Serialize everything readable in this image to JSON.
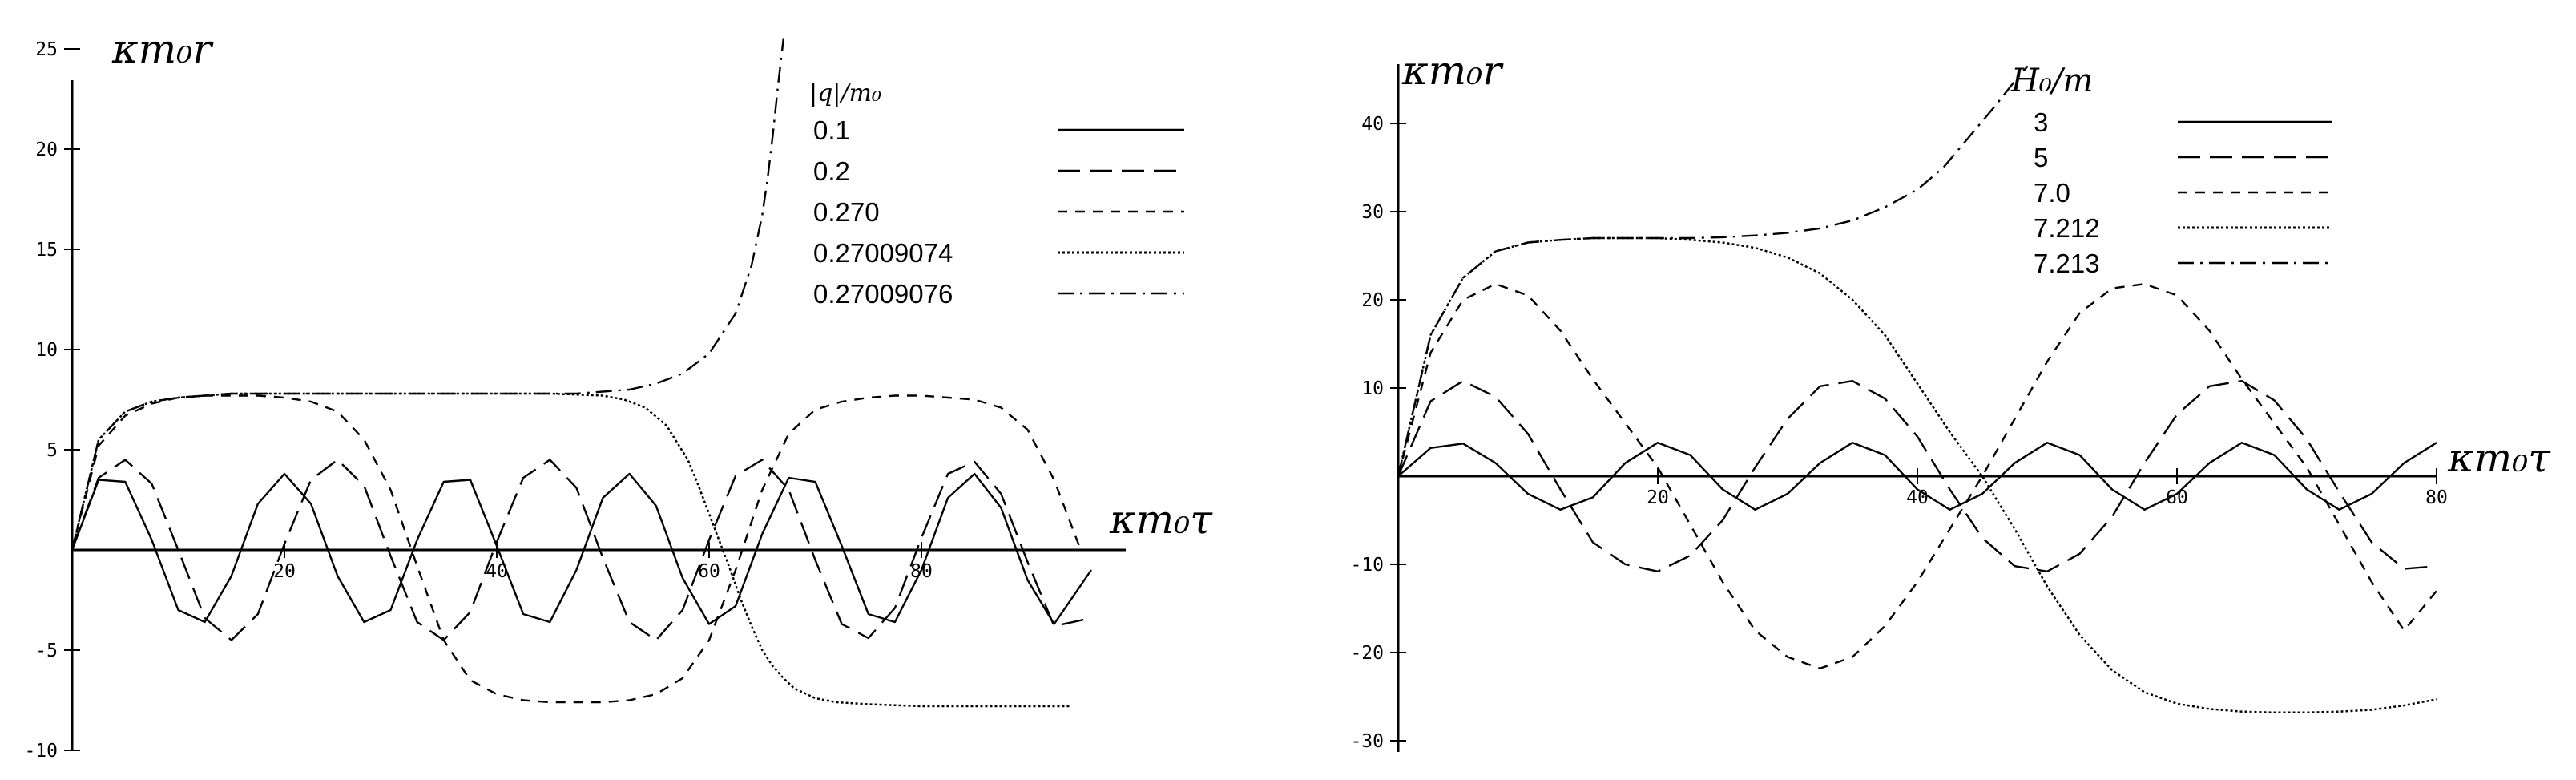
{
  "chart_data": [
    {
      "type": "line",
      "xlabel": "κm₀τ",
      "ylabel": "κm₀r",
      "xlim": [
        0,
        100
      ],
      "ylim": [
        -10,
        25
      ],
      "x_ticks": [
        20,
        40,
        60,
        80
      ],
      "y_ticks": [
        -10,
        -5,
        5,
        10,
        15,
        20,
        25
      ],
      "legend_title": "|q|/m₀",
      "legend_position": "top-right",
      "grid": false,
      "series": [
        {
          "name": "0.1",
          "dash": "solid",
          "x": [
            0,
            2.5,
            5,
            7.5,
            10,
            12.5,
            15,
            17.5,
            20,
            22.5,
            25,
            27.5,
            30,
            32.5,
            35,
            37.5,
            40,
            42.5,
            45,
            47.5,
            50,
            52.5,
            55,
            57.5,
            60,
            62.5,
            65,
            67.5,
            70,
            72.5,
            75,
            77.5,
            80,
            82.5,
            85,
            87.5,
            90,
            92.5,
            96
          ],
          "y": [
            0,
            3.5,
            3.4,
            0.5,
            -3.0,
            -3.6,
            -1.3,
            2.3,
            3.8,
            2.3,
            -1.3,
            -3.6,
            -3.0,
            0.5,
            3.4,
            3.5,
            0.2,
            -3.2,
            -3.6,
            -1,
            2.6,
            3.8,
            2.2,
            -1.4,
            -3.7,
            -2.8,
            0.8,
            3.6,
            3.4,
            0.2,
            -3.2,
            -3.6,
            -1,
            2.6,
            3.8,
            2.1,
            -1.5,
            -3.7,
            -1
          ]
        },
        {
          "name": "0.2",
          "dash": "dashed",
          "x": [
            0,
            2.5,
            5,
            7.5,
            10,
            12.5,
            15,
            17.5,
            20,
            22.5,
            25,
            27.5,
            30,
            32.5,
            35,
            37.5,
            40,
            42.5,
            45,
            47.5,
            50,
            52.5,
            55,
            57.5,
            60,
            62.5,
            65,
            67.5,
            70,
            72.5,
            75,
            77.5,
            80,
            82.5,
            85,
            87.5,
            90,
            92.5,
            96
          ],
          "y": [
            0,
            3.6,
            4.5,
            3.3,
            0,
            -3.4,
            -4.5,
            -3.2,
            0.3,
            3.5,
            4.5,
            3.2,
            -0.3,
            -3.6,
            -4.5,
            -3.1,
            0.4,
            3.6,
            4.5,
            3.1,
            -0.4,
            -3.6,
            -4.5,
            -3,
            0.5,
            3.7,
            4.5,
            3,
            -0.5,
            -3.7,
            -4.4,
            -2.9,
            0.6,
            3.8,
            4.4,
            2.8,
            -0.6,
            -3.8,
            -3.4
          ]
        },
        {
          "name": "0.270",
          "dash": "short-dashed",
          "x": [
            0,
            2.5,
            5,
            7.5,
            10,
            12.5,
            15,
            17.5,
            20,
            22.5,
            25,
            27.5,
            30,
            32.5,
            35,
            37.5,
            40,
            42.5,
            45,
            47.5,
            50,
            52.5,
            55,
            57.5,
            60,
            62.5,
            65,
            67.5,
            70,
            72.5,
            75,
            77.5,
            80,
            82.5,
            85,
            87.5,
            90,
            92.5,
            95
          ],
          "y": [
            0,
            5.2,
            6.7,
            7.3,
            7.6,
            7.7,
            7.7,
            7.7,
            7.6,
            7.4,
            6.9,
            5.5,
            3,
            -0.8,
            -4.5,
            -6.5,
            -7.2,
            -7.5,
            -7.6,
            -7.6,
            -7.6,
            -7.5,
            -7.2,
            -6.4,
            -4.5,
            -1,
            3,
            5.8,
            7,
            7.4,
            7.6,
            7.7,
            7.7,
            7.6,
            7.5,
            7.1,
            6,
            3.5,
            0
          ]
        },
        {
          "name": "0.27009074",
          "dash": "dotted",
          "x": [
            0,
            2.5,
            5,
            7.5,
            10,
            12.5,
            15,
            20,
            25,
            30,
            35,
            40,
            45,
            50,
            52,
            54,
            56,
            58,
            59,
            60,
            61,
            62,
            63,
            64,
            65,
            66,
            67,
            68,
            70,
            72,
            75,
            80,
            85,
            90,
            94
          ],
          "y": [
            0,
            5.5,
            6.9,
            7.4,
            7.6,
            7.7,
            7.8,
            7.8,
            7.8,
            7.8,
            7.8,
            7.8,
            7.8,
            7.7,
            7.5,
            7.1,
            6.2,
            4.5,
            3.2,
            1.8,
            0.4,
            -1,
            -2.5,
            -3.8,
            -5,
            -5.8,
            -6.4,
            -6.9,
            -7.4,
            -7.6,
            -7.7,
            -7.8,
            -7.8,
            -7.8,
            -7.8
          ]
        },
        {
          "name": "0.27009076",
          "dash": "dash-dot",
          "x": [
            0,
            2.5,
            5,
            7.5,
            10,
            12.5,
            15,
            20,
            25,
            30,
            35,
            40,
            45,
            47.5,
            50,
            52.5,
            55,
            57.5,
            60,
            62.5,
            64,
            65,
            65.5,
            66,
            66.5,
            67
          ],
          "y": [
            0,
            5.5,
            6.9,
            7.4,
            7.6,
            7.7,
            7.8,
            7.8,
            7.8,
            7.8,
            7.8,
            7.8,
            7.8,
            7.8,
            7.9,
            8,
            8.3,
            8.8,
            9.8,
            11.8,
            14.2,
            16.7,
            18.5,
            20.7,
            23.2,
            25.5
          ]
        }
      ]
    },
    {
      "type": "line",
      "xlabel": "κm₀τ",
      "ylabel": "κm₀r",
      "xlim": [
        0,
        80
      ],
      "ylim": [
        -30,
        45
      ],
      "x_ticks": [
        20,
        40,
        60,
        80
      ],
      "y_ticks": [
        -30,
        -20,
        -10,
        10,
        20,
        30,
        40
      ],
      "legend_title": "H₀/m",
      "legend_position": "top-right",
      "grid": false,
      "series": [
        {
          "name": "3",
          "dash": "solid",
          "x": [
            0,
            2.5,
            5,
            7.5,
            10,
            12.5,
            15,
            17.5,
            20,
            22.5,
            25,
            27.5,
            30,
            32.5,
            35,
            37.5,
            40,
            42.5,
            45,
            47.5,
            50,
            52.5,
            55,
            57.5,
            60,
            62.5,
            65,
            67.5,
            70,
            72.5,
            75,
            77.5,
            80
          ],
          "y": [
            0,
            3.2,
            3.7,
            1.5,
            -2,
            -3.8,
            -2.4,
            1.5,
            3.8,
            2.4,
            -1.5,
            -3.8,
            -2,
            1.5,
            3.8,
            2.4,
            -1.5,
            -3.8,
            -2,
            1.5,
            3.8,
            2.4,
            -1.5,
            -3.8,
            -2,
            1.5,
            3.8,
            2.4,
            -1.5,
            -3.8,
            -2,
            1.5,
            3.8
          ]
        },
        {
          "name": "5",
          "dash": "dashed",
          "x": [
            0,
            2.5,
            5,
            7.5,
            10,
            12.5,
            15,
            17.5,
            20,
            22.5,
            25,
            27.5,
            30,
            32.5,
            35,
            37.5,
            40,
            42.5,
            45,
            47.5,
            50,
            52.5,
            55,
            57.5,
            60,
            62.5,
            65,
            67.5,
            70,
            72.5,
            75,
            77.5,
            80
          ],
          "y": [
            0,
            8.5,
            10.8,
            9,
            4.8,
            -1.5,
            -7.5,
            -10,
            -10.8,
            -9,
            -5,
            1,
            6.5,
            10.2,
            10.8,
            8.8,
            4.5,
            -1.5,
            -7,
            -10.2,
            -10.8,
            -8.8,
            -4.6,
            1.5,
            7,
            10.2,
            10.8,
            8.6,
            4.2,
            -1.8,
            -7.5,
            -10.5,
            -10.2
          ]
        },
        {
          "name": "7.0",
          "dash": "short-dashed",
          "x": [
            0,
            2.5,
            5,
            7.5,
            10,
            12.5,
            15,
            17.5,
            20,
            22.5,
            25,
            27.5,
            30,
            32.5,
            35,
            37.5,
            40,
            42.5,
            45,
            47.5,
            50,
            52.5,
            55,
            57.5,
            60,
            62.5,
            65,
            67.5,
            70,
            72.5,
            75,
            77.5,
            80
          ],
          "y": [
            0,
            14,
            20,
            21.8,
            20.5,
            16.5,
            11,
            6,
            1,
            -5.5,
            -12,
            -17.5,
            -20.5,
            -21.8,
            -20.5,
            -17,
            -12,
            -6,
            0,
            6.5,
            13,
            18.5,
            21.3,
            21.8,
            20.5,
            16.5,
            11,
            6,
            1,
            -5.5,
            -12,
            -17.5,
            -13
          ]
        },
        {
          "name": "7.212",
          "dash": "dotted",
          "x": [
            0,
            2.5,
            5,
            7.5,
            10,
            12.5,
            15,
            17.5,
            20,
            22.5,
            25,
            27.5,
            30,
            32.5,
            35,
            37.5,
            40,
            42.5,
            45,
            47.5,
            50,
            52.5,
            55,
            57.5,
            60,
            62.5,
            65,
            67.5,
            70,
            72.5,
            75,
            77.5,
            80
          ],
          "y": [
            0,
            16,
            22.5,
            25.5,
            26.5,
            26.8,
            27,
            27,
            27,
            26.8,
            26.5,
            25.9,
            24.8,
            23,
            20,
            16,
            10.5,
            5,
            0,
            -6,
            -12.5,
            -18,
            -22,
            -24.5,
            -25.8,
            -26.4,
            -26.7,
            -26.8,
            -26.8,
            -26.7,
            -26.5,
            -26,
            -25.3
          ]
        },
        {
          "name": "7.213",
          "dash": "dash-dot",
          "x": [
            0,
            2.5,
            5,
            7.5,
            10,
            12.5,
            15,
            17.5,
            20,
            22.5,
            25,
            27.5,
            30,
            32.5,
            35,
            37.5,
            40,
            42,
            44,
            46,
            47.5,
            48.5
          ],
          "y": [
            0,
            16,
            22.5,
            25.5,
            26.5,
            26.8,
            27,
            27,
            27,
            27,
            27.1,
            27.3,
            27.6,
            28.1,
            29,
            30.5,
            32.5,
            35,
            38.5,
            42,
            44.8,
            46.5
          ]
        }
      ]
    }
  ]
}
